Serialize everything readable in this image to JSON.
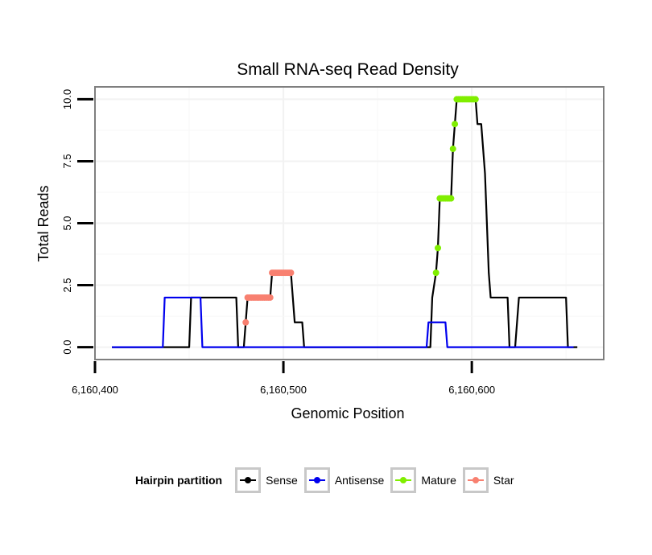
{
  "chart_data": {
    "type": "line",
    "title": "Small RNA-seq Read Density",
    "xlabel": "Genomic Position",
    "ylabel": "Total Reads",
    "xlim": [
      6160400,
      6160670
    ],
    "ylim": [
      -0.5,
      10.5
    ],
    "x_ticks": [
      6160400,
      6160500,
      6160600
    ],
    "x_tick_labels": [
      "6,160,400",
      "6,160,500",
      "6,160,600"
    ],
    "y_ticks": [
      0,
      2.5,
      5,
      7.5,
      10
    ],
    "y_tick_labels": [
      "0.0",
      "2.5",
      "5.0",
      "7.5",
      "10.0"
    ],
    "grid": true,
    "legend": {
      "title": "Hairpin partition",
      "position": "bottom",
      "entries": [
        "Sense",
        "Antisense",
        "Mature",
        "Star"
      ]
    },
    "series": [
      {
        "name": "Sense",
        "color": "#000000",
        "style": "line",
        "points": [
          [
            6160409,
            0
          ],
          [
            6160450,
            0
          ],
          [
            6160451,
            2
          ],
          [
            6160475,
            2
          ],
          [
            6160476,
            0
          ],
          [
            6160479,
            0
          ],
          [
            6160480,
            1
          ],
          [
            6160481,
            2
          ],
          [
            6160492,
            2
          ],
          [
            6160493,
            2
          ],
          [
            6160494,
            3
          ],
          [
            6160504,
            3
          ],
          [
            6160505,
            2
          ],
          [
            6160506,
            1
          ],
          [
            6160510,
            1
          ],
          [
            6160511,
            0
          ],
          [
            6160578,
            0
          ],
          [
            6160579,
            2
          ],
          [
            6160581,
            3
          ],
          [
            6160582,
            4
          ],
          [
            6160583,
            6
          ],
          [
            6160589,
            6
          ],
          [
            6160590,
            8
          ],
          [
            6160591,
            9
          ],
          [
            6160592,
            10
          ],
          [
            6160602,
            10
          ],
          [
            6160603,
            9
          ],
          [
            6160605,
            9
          ],
          [
            6160606,
            8
          ],
          [
            6160607,
            7
          ],
          [
            6160608,
            5
          ],
          [
            6160609,
            3
          ],
          [
            6160610,
            2
          ],
          [
            6160619,
            2
          ],
          [
            6160620,
            0
          ],
          [
            6160623,
            0
          ],
          [
            6160625,
            2
          ],
          [
            6160650,
            2
          ],
          [
            6160651,
            0
          ],
          [
            6160656,
            0
          ]
        ]
      },
      {
        "name": "Antisense",
        "color": "#0000ee",
        "style": "line",
        "points": [
          [
            6160409,
            0
          ],
          [
            6160436,
            0
          ],
          [
            6160437,
            2
          ],
          [
            6160456,
            2
          ],
          [
            6160457,
            0
          ],
          [
            6160576,
            0
          ],
          [
            6160577,
            1
          ],
          [
            6160586,
            1
          ],
          [
            6160587,
            0
          ],
          [
            6160654,
            0
          ]
        ]
      },
      {
        "name": "Mature",
        "color": "#80ee00",
        "style": "points",
        "points": [
          [
            6160581,
            3
          ],
          [
            6160582,
            4
          ],
          [
            6160583,
            6
          ],
          [
            6160584,
            6
          ],
          [
            6160585,
            6
          ],
          [
            6160586,
            6
          ],
          [
            6160587,
            6
          ],
          [
            6160588,
            6
          ],
          [
            6160589,
            6
          ],
          [
            6160590,
            8
          ],
          [
            6160591,
            9
          ],
          [
            6160592,
            10
          ],
          [
            6160593,
            10
          ],
          [
            6160594,
            10
          ],
          [
            6160595,
            10
          ],
          [
            6160596,
            10
          ],
          [
            6160597,
            10
          ],
          [
            6160598,
            10
          ],
          [
            6160599,
            10
          ],
          [
            6160600,
            10
          ],
          [
            6160601,
            10
          ],
          [
            6160602,
            10
          ]
        ]
      },
      {
        "name": "Star",
        "color": "#f88070",
        "style": "points",
        "points": [
          [
            6160480,
            1
          ],
          [
            6160481,
            2
          ],
          [
            6160482,
            2
          ],
          [
            6160483,
            2
          ],
          [
            6160484,
            2
          ],
          [
            6160485,
            2
          ],
          [
            6160486,
            2
          ],
          [
            6160487,
            2
          ],
          [
            6160488,
            2
          ],
          [
            6160489,
            2
          ],
          [
            6160490,
            2
          ],
          [
            6160491,
            2
          ],
          [
            6160492,
            2
          ],
          [
            6160493,
            2
          ],
          [
            6160494,
            3
          ],
          [
            6160495,
            3
          ],
          [
            6160496,
            3
          ],
          [
            6160497,
            3
          ],
          [
            6160498,
            3
          ],
          [
            6160499,
            3
          ],
          [
            6160500,
            3
          ],
          [
            6160501,
            3
          ],
          [
            6160502,
            3
          ],
          [
            6160503,
            3
          ],
          [
            6160504,
            3
          ]
        ]
      }
    ]
  }
}
